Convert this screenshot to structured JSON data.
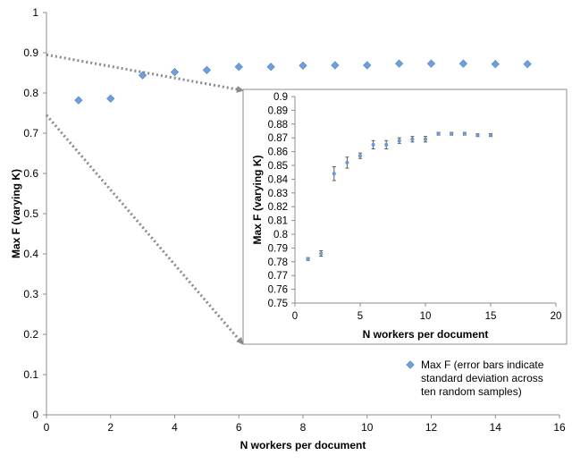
{
  "chart_data": [
    {
      "type": "scatter",
      "panel": "main",
      "xlabel": "N workers per document",
      "ylabel": "Max F (varying K)",
      "xlim": [
        0,
        16
      ],
      "ylim": [
        0,
        1
      ],
      "x_ticks": [
        "0",
        "2",
        "4",
        "6",
        "8",
        "10",
        "12",
        "14",
        "16"
      ],
      "y_ticks": [
        "0",
        "0.1",
        "0.2",
        "0.3",
        "0.4",
        "0.5",
        "0.6",
        "0.7",
        "0.8",
        "0.9",
        "1"
      ],
      "grid": false,
      "legend_position": "bottom-right",
      "series": [
        {
          "name": "Max F (error bars indicate standard deviation across ten random samples)",
          "color": "#6f9fd8",
          "marker": "diamond",
          "x": [
            1,
            2,
            3,
            4,
            5,
            6,
            7,
            8,
            9,
            10,
            11,
            12,
            13,
            14,
            15
          ],
          "y": [
            0.782,
            0.786,
            0.844,
            0.852,
            0.857,
            0.865,
            0.865,
            0.868,
            0.869,
            0.869,
            0.873,
            0.873,
            0.873,
            0.872,
            0.872
          ]
        }
      ]
    },
    {
      "type": "scatter",
      "panel": "inset",
      "xlabel": "N workers per document",
      "ylabel": "Max F (varying K)",
      "xlim": [
        0,
        20
      ],
      "ylim": [
        0.75,
        0.9
      ],
      "x_ticks": [
        "0",
        "5",
        "10",
        "15",
        "20"
      ],
      "y_ticks": [
        "0.75",
        "0.76",
        "0.77",
        "0.78",
        "0.79",
        "0.8",
        "0.81",
        "0.82",
        "0.83",
        "0.84",
        "0.85",
        "0.86",
        "0.87",
        "0.88",
        "0.89",
        "0.9"
      ],
      "grid": false,
      "series": [
        {
          "color": "#6f9fd8",
          "marker": "dot",
          "x": [
            1,
            2,
            3,
            4,
            5,
            6,
            7,
            8,
            9,
            10,
            11,
            12,
            13,
            14,
            15
          ],
          "y": [
            0.782,
            0.786,
            0.844,
            0.852,
            0.857,
            0.865,
            0.865,
            0.868,
            0.869,
            0.869,
            0.873,
            0.873,
            0.873,
            0.872,
            0.872
          ],
          "error": [
            0.001,
            0.002,
            0.005,
            0.004,
            0.002,
            0.003,
            0.003,
            0.002,
            0.002,
            0.002,
            0.001,
            0.001,
            0.001,
            0.001,
            0.001
          ]
        }
      ]
    }
  ],
  "legend": {
    "label_lines": [
      "Max F (error bars indicate",
      "standard deviation across",
      "ten random samples)"
    ]
  }
}
